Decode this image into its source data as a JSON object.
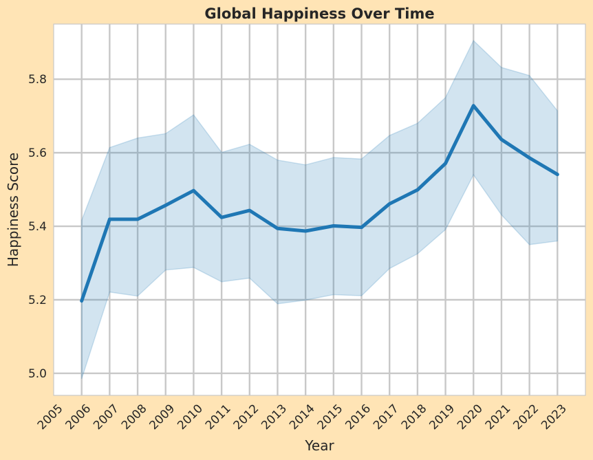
{
  "chart_data": {
    "type": "line",
    "title": "Global Happiness Over Time",
    "xlabel": "Year",
    "ylabel": "Happiness Score",
    "x_ticks": [
      "2005",
      "2006",
      "2007",
      "2008",
      "2009",
      "2010",
      "2011",
      "2012",
      "2013",
      "2014",
      "2015",
      "2016",
      "2017",
      "2018",
      "2019",
      "2020",
      "2021",
      "2022",
      "2023"
    ],
    "xlim": [
      2005,
      2024
    ],
    "ylim": [
      4.94,
      5.95
    ],
    "y_ticks": [
      5.0,
      5.2,
      5.4,
      5.6,
      5.8
    ],
    "grid": true,
    "series": [
      {
        "x": [
          2006,
          2007,
          2008,
          2009,
          2010,
          2011,
          2012,
          2013,
          2014,
          2015,
          2016,
          2017,
          2018,
          2019,
          2020,
          2021,
          2022,
          2023
        ],
        "y": [
          5.197,
          5.419,
          5.419,
          5.457,
          5.497,
          5.424,
          5.443,
          5.394,
          5.387,
          5.401,
          5.397,
          5.461,
          5.499,
          5.571,
          5.728,
          5.636,
          5.586,
          5.541
        ],
        "lower": [
          4.985,
          5.221,
          5.21,
          5.281,
          5.288,
          5.249,
          5.259,
          5.189,
          5.199,
          5.214,
          5.211,
          5.285,
          5.325,
          5.391,
          5.54,
          5.431,
          5.35,
          5.36
        ],
        "upper": [
          5.416,
          5.614,
          5.64,
          5.652,
          5.703,
          5.601,
          5.623,
          5.58,
          5.567,
          5.587,
          5.583,
          5.647,
          5.68,
          5.75,
          5.905,
          5.832,
          5.81,
          5.714
        ]
      }
    ],
    "colors": {
      "line": "#1f77b4",
      "band": "#1f77b4",
      "grid": "#c8c8c8",
      "background": "#ffe4b5",
      "plot_background": "#ffffff"
    }
  }
}
